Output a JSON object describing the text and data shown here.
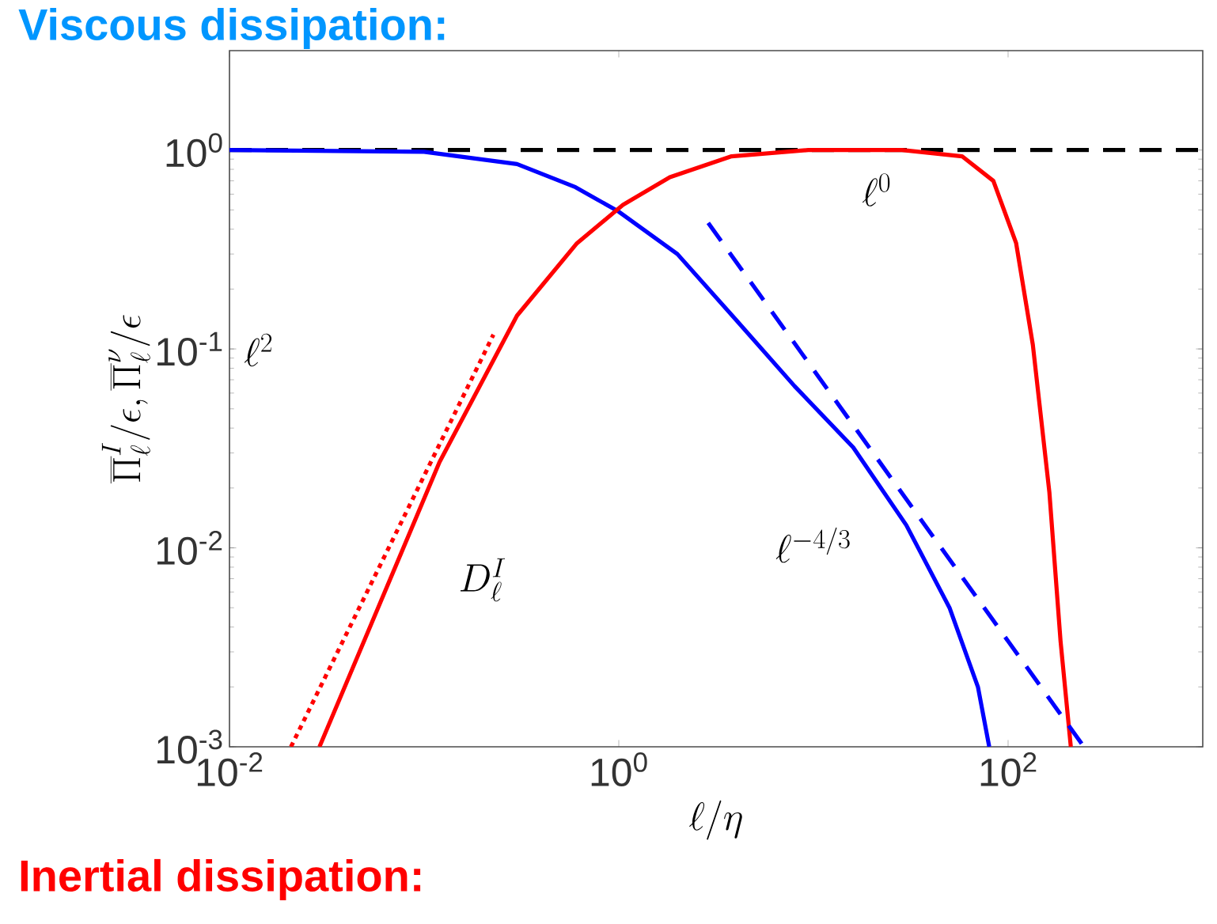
{
  "chart_data": {
    "type": "line",
    "xlabel": "\\ell/\\eta",
    "ylabel": "\\overline{\\Pi}_\\ell^I/\\epsilon, \\overline{\\Pi}_\\ell^\\nu/\\epsilon",
    "log": "xy",
    "xlim": [
      0.01,
      1000
    ],
    "ylim": [
      0.001,
      3.16
    ],
    "xticks": [
      {
        "value": 0.01,
        "label": "10$^{-2}$"
      },
      {
        "value": 1,
        "label": "10$^{0}$"
      },
      {
        "value": 100,
        "label": "10$^{2}$"
      }
    ],
    "yticks": [
      {
        "value": 0.001,
        "label": "10$^{-3}$"
      },
      {
        "value": 0.01,
        "label": "10$^{-2}$"
      },
      {
        "value": 0.1,
        "label": "10$^{-1}$"
      },
      {
        "value": 1,
        "label": "10$^{0}$"
      }
    ],
    "series": [
      {
        "color": "#0000ff",
        "line_style": "solid",
        "x": [
          0.01,
          0.1,
          0.3,
          0.6,
          1,
          2,
          4,
          8,
          16,
          30,
          50,
          70,
          80
        ],
        "values": [
          1,
          0.98,
          0.85,
          0.65,
          0.49,
          0.3,
          0.14,
          0.065,
          0.032,
          0.013,
          0.005,
          0.002,
          0.001
        ]
      },
      {
        "color": "#ff0000",
        "line_style": "solid",
        "x": [
          0.029,
          0.12,
          0.3,
          0.61,
          1.05,
          1.83,
          3.8,
          9.4,
          28.5,
          58,
          84,
          110,
          134,
          163,
          186,
          210
        ],
        "values": [
          0.001,
          0.027,
          0.147,
          0.34,
          0.53,
          0.73,
          0.93,
          1,
          1,
          0.93,
          0.7,
          0.34,
          0.105,
          0.019,
          0.0034,
          0.001
        ]
      },
      {
        "color": "#ff0000",
        "line_style": "dotted",
        "x": [
          0.0207,
          0.227
        ],
        "values": [
          0.001,
          0.118
        ]
      },
      {
        "color": "#0000ff",
        "line_style": "dashed",
        "x": [
          2.88,
          245
        ],
        "values": [
          0.43,
          0.001
        ]
      }
    ],
    "ref_lines": [
      {
        "axis": "y",
        "value": 1,
        "color": "#000000",
        "line_style": "dashed"
      }
    ],
    "annotations": [
      "\\ell^0",
      "\\ell^2",
      "\\ell^{-4/3}",
      "D_\\ell^I",
      "Viscous dissipation:",
      "Inertial dissipation:"
    ]
  }
}
